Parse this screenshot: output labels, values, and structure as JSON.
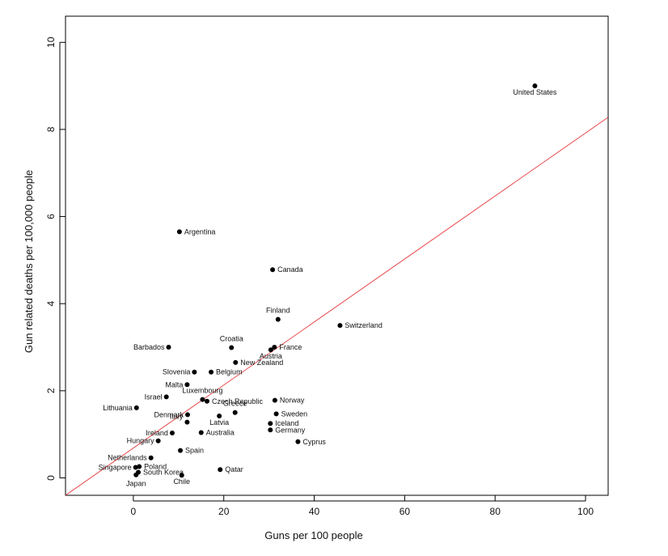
{
  "chart_data": {
    "type": "scatter",
    "title": "",
    "xlabel": "Guns per 100 people",
    "ylabel": "Gun related deaths per 100,000 people",
    "xlim": [
      -15,
      105
    ],
    "ylim": [
      -0.4,
      10.6
    ],
    "xticks": [
      0,
      20,
      40,
      60,
      80,
      100
    ],
    "yticks": [
      0,
      2,
      4,
      6,
      8,
      10
    ],
    "grid": false,
    "legend": "none",
    "point_color": "#000000",
    "line_color": "#e8474b",
    "regression_line": {
      "points": [
        [
          -15,
          -0.4
        ],
        [
          105,
          8.28
        ]
      ]
    },
    "points": [
      {
        "label": "United States",
        "x": 88.8,
        "y": 9.0
      },
      {
        "label": "Argentina",
        "x": 10.2,
        "y": 5.65
      },
      {
        "label": "Canada",
        "x": 30.8,
        "y": 4.78
      },
      {
        "label": "Finland",
        "x": 32.0,
        "y": 3.64
      },
      {
        "label": "Switzerland",
        "x": 45.7,
        "y": 3.5
      },
      {
        "label": "Barbados",
        "x": 7.8,
        "y": 3.0
      },
      {
        "label": "Croatia",
        "x": 21.7,
        "y": 2.99
      },
      {
        "label": "France",
        "x": 31.2,
        "y": 3.0
      },
      {
        "label": "Austria",
        "x": 30.4,
        "y": 2.94
      },
      {
        "label": "New Zealand",
        "x": 22.6,
        "y": 2.65
      },
      {
        "label": "Slovenia",
        "x": 13.5,
        "y": 2.43
      },
      {
        "label": "Belgium",
        "x": 17.2,
        "y": 2.43
      },
      {
        "label": "Malta",
        "x": 11.9,
        "y": 2.14
      },
      {
        "label": "Israel",
        "x": 7.3,
        "y": 1.86
      },
      {
        "label": "Luxembourg",
        "x": 15.3,
        "y": 1.8
      },
      {
        "label": "Czech Republic",
        "x": 16.3,
        "y": 1.76
      },
      {
        "label": "Norway",
        "x": 31.3,
        "y": 1.78
      },
      {
        "label": "Lithuania",
        "x": 0.7,
        "y": 1.61
      },
      {
        "label": "Greece",
        "x": 22.5,
        "y": 1.5
      },
      {
        "label": "Sweden",
        "x": 31.6,
        "y": 1.47
      },
      {
        "label": "Denmark",
        "x": 12.0,
        "y": 1.45
      },
      {
        "label": "Italy",
        "x": 11.9,
        "y": 1.28
      },
      {
        "label": "Latvia",
        "x": 19.0,
        "y": 1.42
      },
      {
        "label": "Iceland",
        "x": 30.3,
        "y": 1.25
      },
      {
        "label": "Australia",
        "x": 15.0,
        "y": 1.04
      },
      {
        "label": "Ireland",
        "x": 8.6,
        "y": 1.03
      },
      {
        "label": "Germany",
        "x": 30.3,
        "y": 1.1
      },
      {
        "label": "Cyprus",
        "x": 36.4,
        "y": 0.83
      },
      {
        "label": "Hungary",
        "x": 5.5,
        "y": 0.85
      },
      {
        "label": "Spain",
        "x": 10.4,
        "y": 0.63
      },
      {
        "label": "Netherlands",
        "x": 3.9,
        "y": 0.46
      },
      {
        "label": "Poland",
        "x": 1.3,
        "y": 0.26
      },
      {
        "label": "Singapore",
        "x": 0.5,
        "y": 0.24
      },
      {
        "label": "South Korea",
        "x": 1.1,
        "y": 0.13
      },
      {
        "label": "Qatar",
        "x": 19.2,
        "y": 0.19
      },
      {
        "label": "Japan",
        "x": 0.6,
        "y": 0.07
      },
      {
        "label": "Chile",
        "x": 10.7,
        "y": 0.06
      }
    ]
  }
}
